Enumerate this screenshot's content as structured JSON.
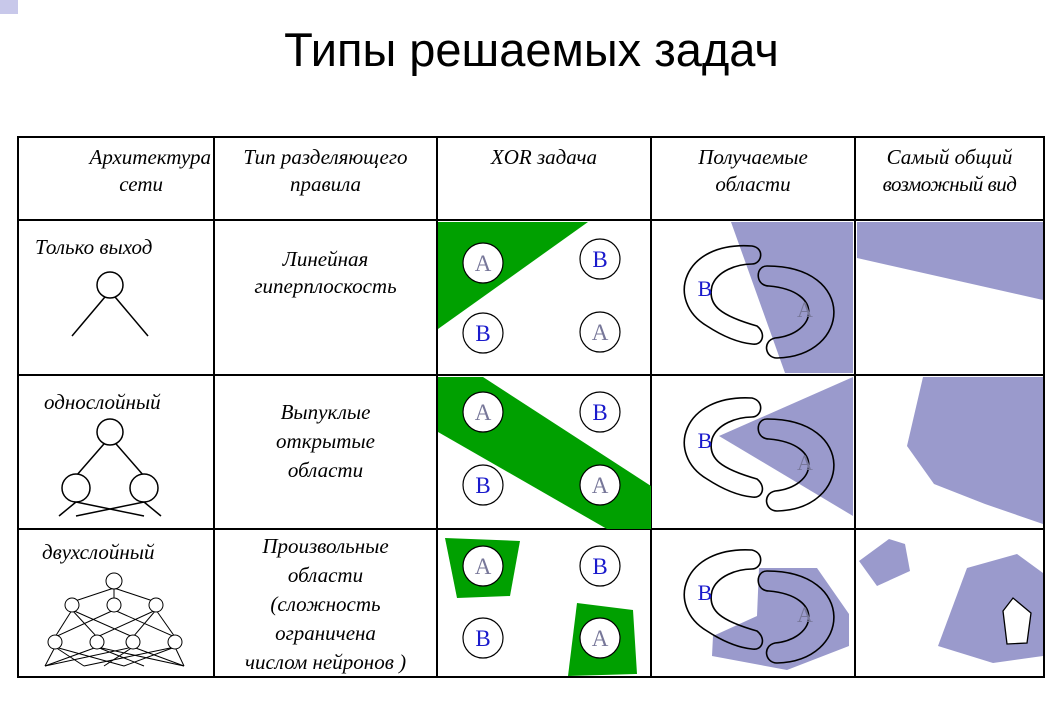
{
  "title": "Типы решаемых задач",
  "headers": {
    "arch_line1": "Архитектура",
    "arch_line2": "сети",
    "rule_line1": "Тип разделяющего",
    "rule_line2": "правила",
    "xor": "XOR задача",
    "regions_line1": "Получаемые",
    "regions_line2": "области",
    "general_line1": "Самый общий",
    "general_line2": "возможный вид"
  },
  "rows": [
    {
      "arch": "Только выход",
      "rule_lines": [
        "Линейная",
        "гиперплоскость"
      ]
    },
    {
      "arch": "однослойный",
      "rule_lines": [
        "Выпуклые",
        "открытые",
        "области"
      ]
    },
    {
      "arch": "двухслойный",
      "rule_lines": [
        "Произвольные",
        "области",
        "(сложность",
        "ограничена",
        "числом нейронов )"
      ]
    }
  ],
  "class_labels": {
    "a": "A",
    "b": "B"
  },
  "colors": {
    "green": "#00a000",
    "lavender": "#9a9acc",
    "blue_text": "#1a1acc",
    "gray_text": "#777799",
    "corner": "#c8c8ea"
  }
}
